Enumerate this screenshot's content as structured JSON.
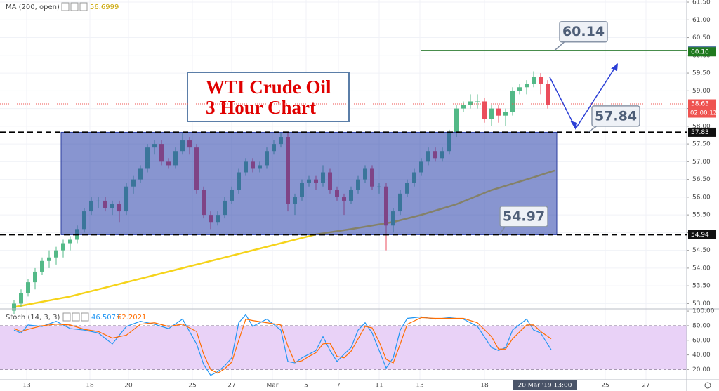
{
  "chart_data": [
    {
      "type": "candlestick",
      "annotations": {
        "title_line1": "WTI Crude Oil",
        "title_line2": "3 Hour Chart",
        "callouts": [
          60.14,
          57.84,
          54.97
        ]
      },
      "x": [
        0,
        1,
        2,
        3,
        4,
        5,
        6,
        7,
        8,
        9,
        10,
        11,
        12,
        13,
        14,
        15,
        16,
        17,
        18,
        19,
        20,
        21,
        22,
        23,
        24,
        25,
        26,
        27,
        28,
        29,
        30,
        31,
        32,
        33,
        34,
        35,
        36,
        37,
        38,
        39,
        40,
        41,
        42,
        43,
        44,
        45,
        46,
        47,
        48,
        49,
        50,
        51,
        52,
        53,
        54,
        55,
        56,
        57,
        58,
        59,
        60,
        61,
        62,
        63,
        64,
        65,
        66,
        67,
        68,
        69,
        70,
        71,
        72,
        73,
        74,
        75,
        76
      ],
      "open": [
        52.8,
        53.0,
        53.3,
        53.6,
        53.9,
        54.2,
        54.3,
        54.5,
        54.7,
        54.8,
        55.1,
        55.6,
        55.9,
        55.9,
        55.7,
        55.8,
        55.6,
        56.3,
        56.5,
        56.8,
        57.4,
        57.5,
        57.0,
        56.9,
        57.3,
        57.6,
        57.4,
        56.2,
        55.5,
        55.3,
        55.5,
        55.9,
        56.2,
        56.7,
        57.0,
        56.8,
        56.9,
        57.3,
        57.5,
        57.7,
        55.8,
        56.0,
        56.4,
        56.5,
        56.4,
        56.7,
        56.2,
        56.0,
        55.9,
        56.2,
        56.5,
        56.8,
        56.3,
        56.3,
        55.2,
        55.6,
        56.1,
        56.4,
        56.7,
        57.0,
        57.3,
        57.1,
        57.3,
        57.8,
        58.5,
        58.6,
        58.7,
        58.7,
        58.2,
        58.5,
        58.3,
        58.4,
        59.0,
        59.1,
        59.2,
        59.4,
        59.2
      ],
      "high": [
        53.1,
        53.4,
        53.7,
        54.0,
        54.3,
        54.5,
        54.6,
        54.8,
        54.9,
        55.2,
        55.7,
        56.0,
        56.0,
        56.0,
        55.9,
        55.9,
        56.4,
        56.6,
        56.9,
        57.5,
        57.6,
        57.6,
        57.1,
        57.4,
        57.8,
        57.7,
        57.5,
        56.3,
        55.6,
        55.6,
        56.0,
        56.3,
        56.8,
        57.1,
        57.1,
        57.0,
        57.4,
        57.6,
        57.8,
        57.8,
        56.1,
        56.5,
        56.6,
        56.6,
        56.9,
        56.8,
        56.3,
        56.1,
        56.3,
        56.6,
        56.9,
        56.9,
        56.4,
        56.4,
        55.7,
        56.2,
        56.5,
        56.8,
        57.1,
        57.4,
        57.4,
        57.4,
        57.9,
        58.6,
        58.7,
        58.9,
        58.9,
        58.8,
        58.6,
        58.6,
        58.5,
        59.1,
        59.2,
        59.3,
        59.55,
        59.5,
        59.3
      ],
      "low": [
        52.7,
        52.9,
        53.2,
        53.4,
        53.8,
        54.0,
        54.1,
        54.3,
        54.5,
        54.7,
        55.0,
        55.5,
        55.7,
        55.6,
        55.5,
        55.3,
        55.5,
        56.1,
        56.4,
        56.7,
        57.2,
        56.9,
        56.8,
        56.8,
        57.2,
        57.2,
        56.1,
        55.4,
        55.1,
        55.2,
        55.4,
        55.8,
        56.1,
        56.6,
        56.7,
        56.7,
        56.8,
        57.2,
        57.4,
        55.6,
        55.5,
        55.9,
        56.3,
        56.2,
        56.3,
        56.1,
        55.9,
        55.5,
        55.8,
        56.1,
        56.4,
        56.2,
        56.1,
        54.5,
        55.0,
        55.5,
        56.0,
        56.3,
        56.6,
        56.9,
        57.0,
        57.0,
        57.2,
        57.7,
        58.4,
        58.5,
        58.5,
        58.1,
        58.0,
        58.1,
        58.0,
        58.3,
        58.9,
        58.9,
        59.1,
        58.9,
        58.5
      ],
      "close": [
        53.0,
        53.3,
        53.6,
        53.9,
        54.2,
        54.3,
        54.5,
        54.7,
        54.8,
        55.1,
        55.6,
        55.9,
        55.9,
        55.7,
        55.8,
        55.6,
        56.3,
        56.5,
        56.8,
        57.4,
        57.5,
        57.0,
        56.9,
        57.3,
        57.6,
        57.4,
        56.2,
        55.5,
        55.3,
        55.5,
        55.9,
        56.2,
        56.7,
        57.0,
        56.8,
        56.9,
        57.3,
        57.5,
        57.7,
        55.8,
        56.0,
        56.4,
        56.5,
        56.4,
        56.7,
        56.2,
        56.0,
        55.9,
        56.2,
        56.5,
        56.8,
        56.3,
        56.3,
        55.2,
        55.6,
        56.1,
        56.4,
        56.7,
        57.0,
        57.3,
        57.1,
        57.3,
        57.8,
        58.5,
        58.6,
        58.7,
        58.7,
        58.2,
        58.5,
        58.3,
        58.4,
        59.0,
        59.1,
        59.2,
        59.4,
        59.2,
        58.6
      ],
      "up_color": "#53b987",
      "down_color": "#eb4d5c",
      "overlay": {
        "name": "MA (200, open)",
        "last": 56.6999,
        "color": "#f5d31a",
        "x": [
          0,
          8,
          18,
          28,
          38,
          43,
          48,
          54,
          58,
          63,
          68,
          73,
          77
        ],
        "values": [
          52.9,
          53.2,
          53.7,
          54.2,
          54.7,
          54.95,
          55.1,
          55.3,
          55.5,
          55.8,
          56.2,
          56.5,
          56.75
        ]
      },
      "range_box": {
        "top": 57.83,
        "bottom": 54.94
      },
      "resistance": 60.14,
      "current": 58.63,
      "countdown": "02:00:12",
      "price_labels": [
        {
          "value": 60.14,
          "color": "#5b7ea8"
        },
        {
          "value": 60.1,
          "label": "60.10",
          "color": "#1f7a1f"
        },
        {
          "value": 58.63,
          "color": "#ef5350"
        },
        {
          "value": 57.83,
          "color": "#111111"
        },
        {
          "value": 54.94,
          "color": "#111111"
        }
      ],
      "xlim": [
        -2,
        95.8
      ],
      "xticks": [
        {
          "value": 1.8,
          "label": "13"
        },
        {
          "value": 10.8,
          "label": "18"
        },
        {
          "value": 16.3,
          "label": "20"
        },
        {
          "value": 25.4,
          "label": "25"
        },
        {
          "value": 31,
          "label": "27"
        },
        {
          "value": 36.8,
          "label": "Mar"
        },
        {
          "value": 41.6,
          "label": "5"
        },
        {
          "value": 46.2,
          "label": "7"
        },
        {
          "value": 52,
          "label": "11"
        },
        {
          "value": 57.8,
          "label": "13"
        },
        {
          "value": 67,
          "label": "18"
        },
        {
          "value": 84.2,
          "label": "25"
        },
        {
          "value": 90,
          "label": "27"
        }
      ],
      "cursor_tick": {
        "value": 75.6,
        "label": "20 Mar '19   13:00"
      },
      "ylim": [
        52.85,
        61.56
      ],
      "yticks": [
        {
          "value": 61.5,
          "label": "61.50"
        },
        {
          "value": 61,
          "label": "61.00"
        },
        {
          "value": 60.5,
          "label": "60.50"
        },
        {
          "value": 60,
          "label": "60.00"
        },
        {
          "value": 59.5,
          "label": "59.50"
        },
        {
          "value": 59,
          "label": "59.00"
        },
        {
          "value": 58.5,
          "label": "58.50"
        },
        {
          "value": 58,
          "label": "58.00"
        },
        {
          "value": 57.5,
          "label": "57.50"
        },
        {
          "value": 57,
          "label": "57.00"
        },
        {
          "value": 56.5,
          "label": "56.50"
        },
        {
          "value": 56,
          "label": "56.00"
        },
        {
          "value": 55.5,
          "label": "55.50"
        },
        {
          "value": 55,
          "label": "55.00"
        },
        {
          "value": 54.5,
          "label": "54.50"
        },
        {
          "value": 54,
          "label": "54.00"
        },
        {
          "value": 53.5,
          "label": "53.50"
        },
        {
          "value": 53,
          "label": "53.00"
        }
      ],
      "grid": true
    },
    {
      "type": "line",
      "title": "Stoch (14, 3, 3)",
      "x": [
        0,
        1,
        2,
        4,
        6,
        8,
        10,
        12,
        14,
        16,
        18,
        20,
        22,
        24,
        26,
        27,
        28,
        29,
        30,
        31,
        32,
        33,
        34,
        36,
        38,
        39,
        40,
        41,
        42,
        43,
        44,
        45,
        46,
        47,
        48,
        49,
        50,
        51,
        52,
        53,
        54,
        55,
        56,
        58,
        60,
        62,
        64,
        66,
        68,
        69,
        70,
        71,
        73,
        74,
        75,
        76.5
      ],
      "series": [
        {
          "last": 46.5075,
          "color": "#2196f3",
          "values": [
            74,
            70,
            81,
            79,
            86,
            76,
            74,
            70,
            55,
            79,
            86,
            82,
            76,
            89,
            55,
            27,
            12,
            17,
            25,
            36,
            84,
            95,
            79,
            89,
            74,
            31,
            29,
            36,
            41,
            46,
            65,
            46,
            31,
            41,
            50,
            74,
            84,
            70,
            46,
            22,
            36,
            74,
            90,
            92,
            89,
            91,
            89,
            79,
            50,
            46,
            50,
            74,
            89,
            74,
            70,
            47
          ]
        },
        {
          "last": 62.2021,
          "color": "#ff6d00",
          "values": [
            76,
            72,
            75,
            80,
            82,
            81,
            75,
            72,
            63,
            67,
            82,
            84,
            79,
            82,
            72,
            41,
            20,
            15,
            21,
            30,
            60,
            89,
            87,
            84,
            81,
            52,
            30,
            32,
            38,
            43,
            55,
            56,
            38,
            36,
            45,
            62,
            79,
            77,
            58,
            34,
            29,
            55,
            82,
            91,
            90,
            90,
            90,
            84,
            65,
            48,
            48,
            62,
            81,
            81,
            72,
            62
          ]
        }
      ],
      "band": [
        20,
        80
      ],
      "ylim": [
        6,
        102
      ],
      "yticks": [
        {
          "value": 100,
          "label": "100.00"
        },
        {
          "value": 80,
          "label": "80.00"
        },
        {
          "value": 60,
          "label": "60.00"
        },
        {
          "value": 40,
          "label": "40.00"
        },
        {
          "value": 20,
          "label": "20.00"
        }
      ]
    }
  ]
}
